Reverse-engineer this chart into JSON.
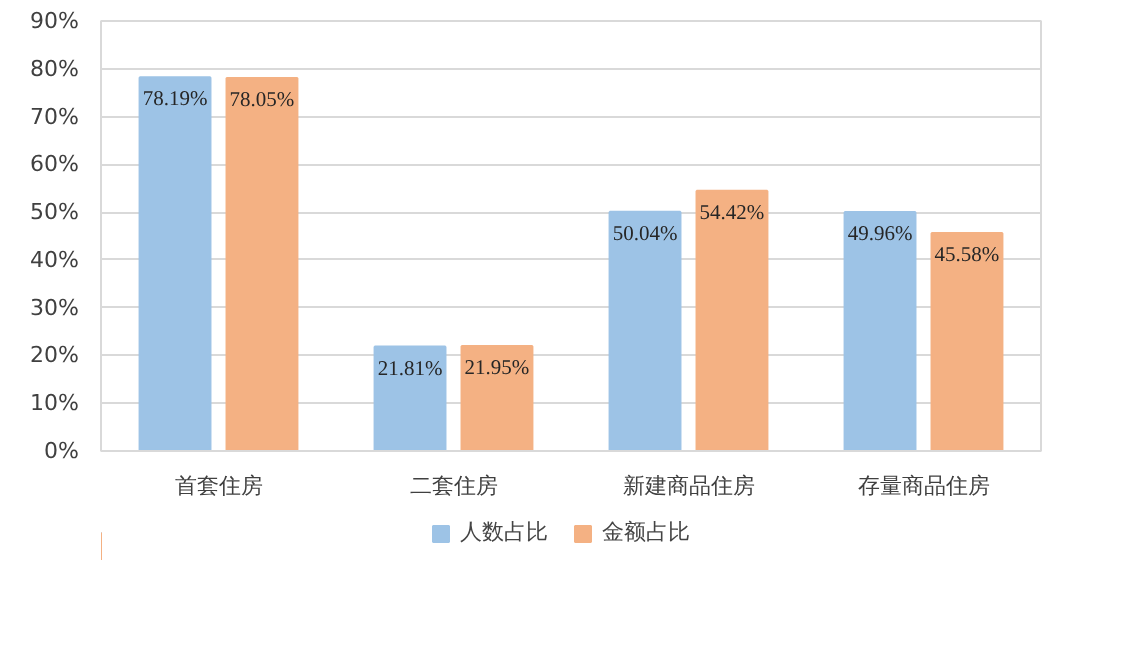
{
  "chart_data": {
    "type": "bar",
    "categories": [
      "首套住房",
      "二套住房",
      "新建商品住房",
      "存量商品住房"
    ],
    "series": [
      {
        "name": "人数占比",
        "color": "#9dc3e6",
        "values": [
          78.19,
          21.81,
          50.04,
          49.96
        ],
        "value_labels": [
          "78.19%",
          "21.81%",
          "50.04%",
          "49.96%"
        ]
      },
      {
        "name": "金额占比",
        "color": "#f4b183",
        "values": [
          78.05,
          21.95,
          54.42,
          45.58
        ],
        "value_labels": [
          "78.05%",
          "21.95%",
          "54.42%",
          "45.58%"
        ]
      }
    ],
    "ylim": [
      0,
      90
    ],
    "yticks": [
      {
        "value": 0,
        "label": "0%"
      },
      {
        "value": 10,
        "label": "10%"
      },
      {
        "value": 20,
        "label": "20%"
      },
      {
        "value": 30,
        "label": "30%"
      },
      {
        "value": 40,
        "label": "40%"
      },
      {
        "value": 50,
        "label": "50%"
      },
      {
        "value": 60,
        "label": "60%"
      },
      {
        "value": 70,
        "label": "70%"
      },
      {
        "value": 80,
        "label": "80%"
      },
      {
        "value": 90,
        "label": "90%"
      }
    ],
    "grid": "y",
    "legend": "bottom"
  }
}
